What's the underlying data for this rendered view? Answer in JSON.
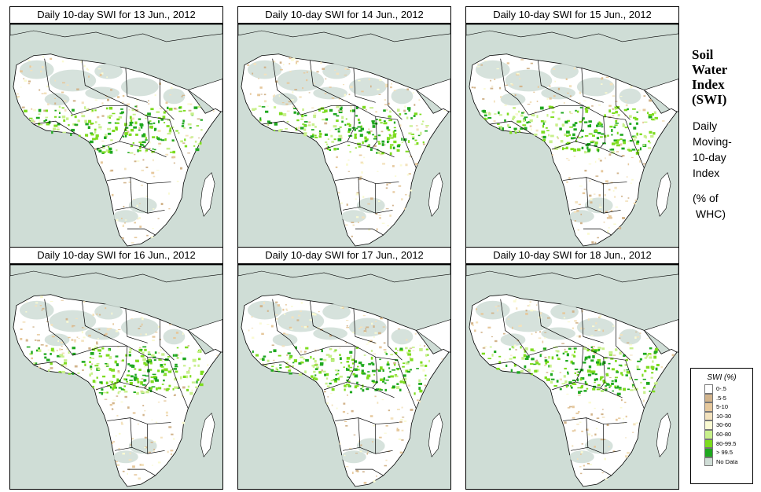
{
  "panels": [
    {
      "title": "Daily 10-day SWI for  13 Jun., 2012"
    },
    {
      "title": "Daily 10-day SWI for  14 Jun., 2012"
    },
    {
      "title": "Daily 10-day SWI for  15 Jun., 2012"
    },
    {
      "title": "Daily 10-day SWI for  16 Jun., 2012"
    },
    {
      "title": "Daily 10-day SWI for  17 Jun., 2012"
    },
    {
      "title": "Daily 10-day SWI for  18 Jun., 2012"
    }
  ],
  "sidebar": {
    "title_lines": [
      "Soil",
      "Water",
      "Index",
      "(SWI)"
    ],
    "desc_lines": [
      "Daily",
      "Moving-",
      "10-day",
      "Index"
    ],
    "unit_lines": [
      "(% of",
      " WHC)"
    ]
  },
  "legend": {
    "title": "SWI (%)",
    "items": [
      {
        "label": "0-.5",
        "color": "#ffffff"
      },
      {
        "label": ".5-5",
        "color": "#d2b48c"
      },
      {
        "label": "5-10",
        "color": "#e6c89c"
      },
      {
        "label": "10-30",
        "color": "#f3e2bd"
      },
      {
        "label": "30-60",
        "color": "#fafad2"
      },
      {
        "label": "60-80",
        "color": "#c8f08c"
      },
      {
        "label": "80-99.5",
        "color": "#7ddc1f"
      },
      {
        "label": "> 99.5",
        "color": "#1fa81f"
      },
      {
        "label": "No Data",
        "color": "#cfddd6"
      }
    ]
  },
  "colors": {
    "ocean": "#cfddd6",
    "land": "#ffffff",
    "desert": "#cfddd6",
    "border": "#000000"
  }
}
